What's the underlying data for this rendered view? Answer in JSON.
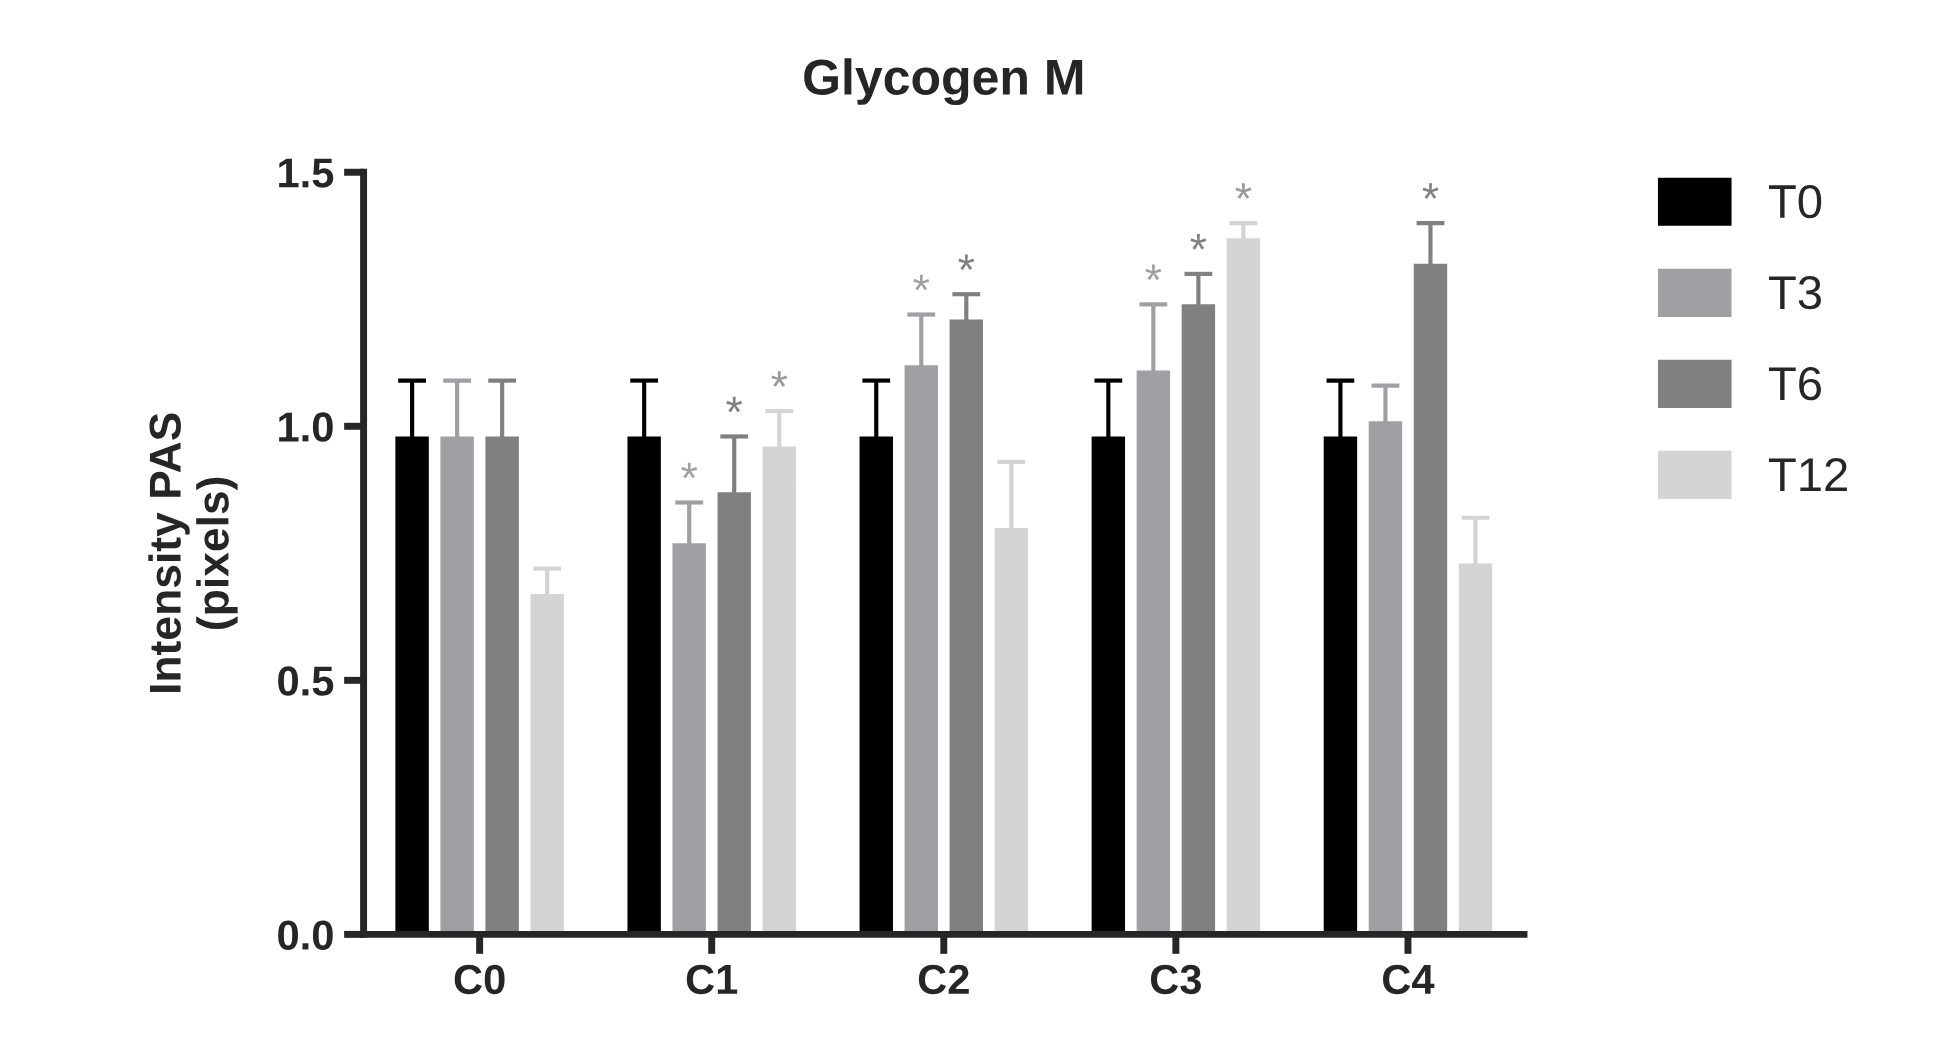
{
  "chart_data": {
    "type": "bar",
    "title": "Glycogen M",
    "ylabel": "Intensity PAS\n(pixels)",
    "categories": [
      "C0",
      "C1",
      "C2",
      "C3",
      "C4"
    ],
    "series": [
      {
        "name": "T0",
        "color": "#000000",
        "values": [
          0.98,
          0.98,
          0.98,
          0.98,
          0.98
        ],
        "errors": [
          0.11,
          0.11,
          0.11,
          0.11,
          0.11
        ]
      },
      {
        "name": "T3",
        "color": "#a0a0a4",
        "values": [
          0.98,
          0.77,
          1.12,
          1.11,
          1.01
        ],
        "errors": [
          0.11,
          0.08,
          0.1,
          0.13,
          0.07
        ],
        "value_labels": [
          null,
          "*",
          "*",
          "*",
          null
        ]
      },
      {
        "name": "T6",
        "color": "#808080",
        "values": [
          0.98,
          0.87,
          1.21,
          1.24,
          1.32
        ],
        "errors": [
          0.11,
          0.11,
          0.05,
          0.06,
          0.08
        ],
        "value_labels": [
          null,
          "*",
          "*",
          "*",
          "*"
        ]
      },
      {
        "name": "T12",
        "color": "#d4d4d4",
        "values": [
          0.67,
          0.96,
          0.8,
          1.37,
          0.73
        ],
        "errors": [
          0.05,
          0.07,
          0.13,
          0.03,
          0.09
        ],
        "value_labels": [
          null,
          "*",
          null,
          "*",
          null
        ]
      }
    ],
    "ylim": [
      0,
      1.5
    ],
    "yticks": [
      {
        "value": 0,
        "label": "0.0"
      },
      {
        "value": 0.5,
        "label": "0.5"
      },
      {
        "value": 1.0,
        "label": "1.0"
      },
      {
        "value": 1.5,
        "label": "1.5"
      }
    ],
    "grid": false,
    "legend": "right"
  }
}
